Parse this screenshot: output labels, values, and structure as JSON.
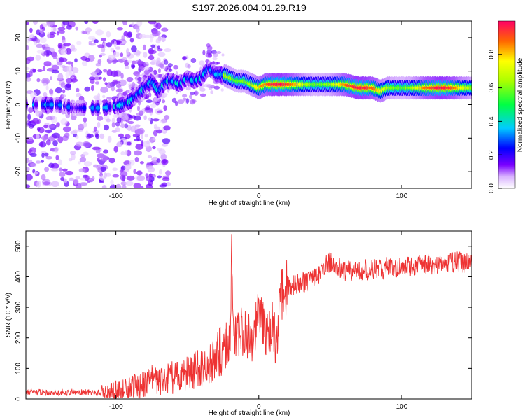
{
  "figure_title": "S197.2026.004.01.29.R19",
  "chart_data": [
    {
      "type": "heatmap",
      "title": "S197.2026.004.01.29.R19",
      "xlabel": "Height of straight line (km)",
      "ylabel": "Frequency (Hz)",
      "xlim": [
        -163,
        149
      ],
      "ylim": [
        -25,
        25
      ],
      "x_ticks": [
        -100,
        0,
        100
      ],
      "y_ticks": [
        -20,
        -10,
        0,
        10,
        20
      ],
      "colorbar": {
        "label": "Normalized spectral amplitude",
        "range": [
          0,
          1
        ],
        "ticks": [
          0.0,
          0.2,
          0.4,
          0.6,
          0.8
        ]
      },
      "dominant_frequency_track": {
        "x": [
          -160,
          -150,
          -140,
          -130,
          -120,
          -110,
          -100,
          -95,
          -90,
          -85,
          -80,
          -75,
          -70,
          -65,
          -60,
          -55,
          -50,
          -45,
          -40,
          -35,
          -30,
          -25,
          -20,
          -15,
          -10,
          -5,
          0,
          5,
          10,
          20,
          30,
          40,
          50,
          60,
          70,
          80,
          85,
          90,
          100,
          110,
          120,
          130,
          140,
          149
        ],
        "y": [
          0,
          0,
          0,
          -1,
          -1,
          -1,
          -0.5,
          0,
          1,
          3,
          5,
          7,
          4,
          7,
          7,
          6,
          8,
          7,
          8,
          11,
          9,
          9,
          8,
          7,
          7,
          6,
          5,
          6,
          6,
          6,
          6,
          6,
          6,
          6,
          5,
          5,
          4,
          5,
          5,
          5,
          5,
          5,
          5,
          5
        ]
      }
    },
    {
      "type": "line",
      "xlabel": "Height of straight line (km)",
      "ylabel": "SNR (10 * v/v)",
      "xlim": [
        -163,
        149
      ],
      "ylim": [
        0,
        550
      ],
      "x_ticks": [
        -100,
        0,
        100
      ],
      "y_ticks": [
        0,
        100,
        200,
        300,
        400,
        500
      ],
      "color": "#ee3333",
      "series": [
        {
          "name": "SNR",
          "x": [
            -163,
            -150,
            -140,
            -130,
            -120,
            -110,
            -100,
            -90,
            -80,
            -75,
            -70,
            -60,
            -50,
            -40,
            -30,
            -25,
            -20,
            -19,
            -18,
            -15,
            -10,
            -5,
            0,
            5,
            10,
            12,
            15,
            20,
            30,
            40,
            48,
            50,
            55,
            60,
            70,
            80,
            90,
            100,
            110,
            120,
            130,
            140,
            149
          ],
          "y": [
            25,
            22,
            20,
            22,
            22,
            20,
            25,
            35,
            50,
            70,
            55,
            70,
            85,
            100,
            130,
            160,
            200,
            550,
            210,
            190,
            230,
            200,
            270,
            220,
            240,
            150,
            330,
            370,
            380,
            400,
            440,
            450,
            430,
            420,
            420,
            425,
            430,
            430,
            440,
            440,
            445,
            450,
            445
          ]
        }
      ]
    }
  ]
}
